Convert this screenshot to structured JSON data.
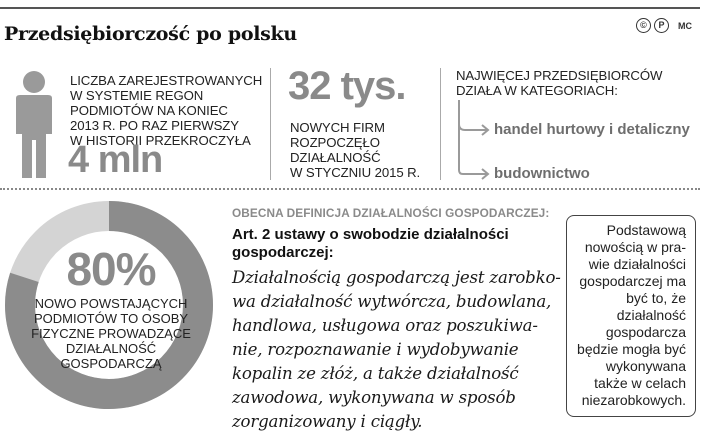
{
  "header": {
    "title": "Przedsiębiorczość po polsku",
    "credits": [
      "©",
      "P"
    ],
    "author": "MC"
  },
  "stat1": {
    "text_lines": [
      "LICZBA ZAREJESTROWANYCH",
      "W SYSTEMIE REGON",
      "PODMIOTÓW NA KONIEC",
      "2013 R. PO RAZ PIERWSZY",
      "W HISTORII PRZEKROCZYŁA"
    ],
    "value": "4 mln"
  },
  "stat2": {
    "value": "32 tys.",
    "text_lines": [
      "NOWYCH FIRM",
      "ROZPOCZĘŁO",
      "DZIAŁALNOŚĆ",
      "W STYCZNIU 2015 R."
    ]
  },
  "stat3": {
    "heading_lines": [
      "NAJWIĘCEJ PRZEDSIĘBIORCÓW",
      "DZIAŁA W KATEGORIACH:"
    ],
    "categories": [
      "handel hurtowy i detaliczny",
      "budownictwo"
    ]
  },
  "ring": {
    "percent_label": "80%",
    "percent_value": 80,
    "caption_lines": [
      "NOWO POWSTAJĄCYCH",
      "PODMIOTÓW TO OSOBY",
      "FIZYCZNE PROWADZĄCE",
      "DZIAŁALNOŚĆ",
      "GOSPODARCZĄ"
    ],
    "colors": {
      "filled": "#8c8c8c",
      "rest": "#d4d4d4"
    }
  },
  "definition": {
    "heading": "OBECNA DEFINICJA DZIAŁALNOŚCI GOSPODARCZEJ:",
    "article_lines": [
      "Art. 2 ustawy o swobodzie działalności",
      "gospodarczej:"
    ],
    "quote_lines": [
      "Działalnością gospodarczą jest zarobko-",
      "wa działalność wytwórcza, budowlana,",
      "handlowa, usługowa oraz poszukiwa-",
      "nie, rozpoznawanie i wydobywanie",
      "kopalin ze złóż, a także działalność",
      "zawodowa, wykonywana w sposób",
      "zorganizowany i ciągły."
    ]
  },
  "note": {
    "lines": [
      "Podstawową",
      "nowością w pra-",
      "wie działalności",
      "gospodarczej ma",
      "być to, że",
      "działalność",
      "gospodarcza",
      "będzie mogła być",
      "wykonywana",
      "także w celach",
      "niezarobkowych."
    ]
  }
}
